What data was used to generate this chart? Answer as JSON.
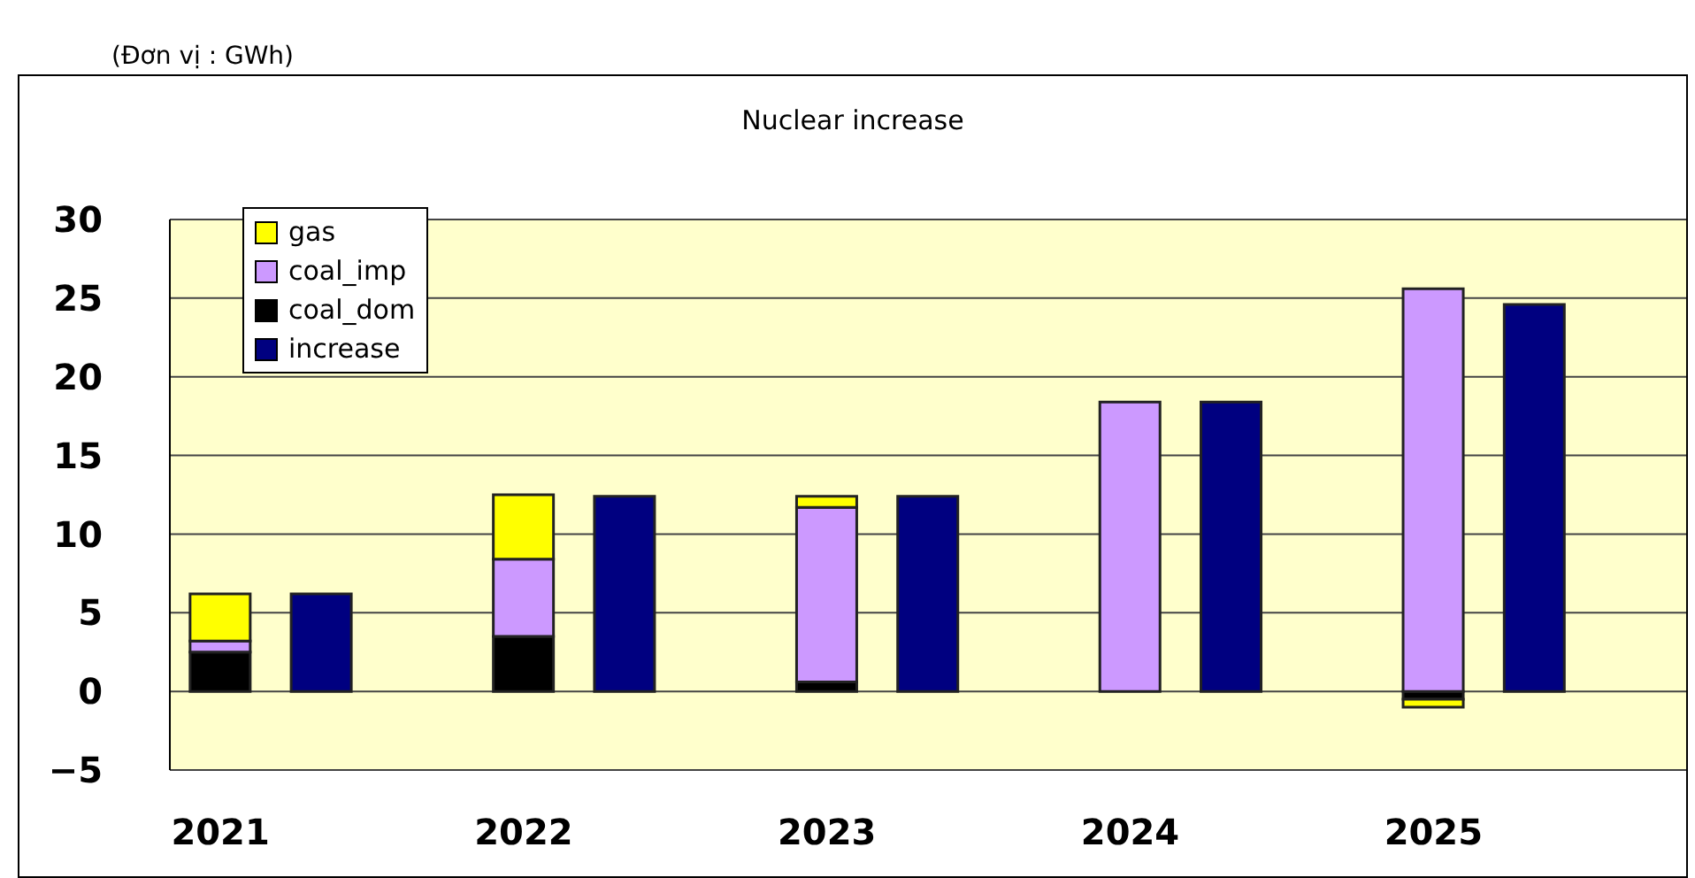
{
  "chart_data": {
    "type": "bar",
    "title": "Nuclear increase",
    "annotations": [
      "(Đơn vị : GWh)"
    ],
    "categories": [
      "2021",
      null,
      null,
      "2022",
      null,
      null,
      "2023",
      null,
      null,
      "2024",
      null,
      null,
      "2025",
      null,
      null
    ],
    "stacked": true,
    "series": [
      {
        "name": "increase",
        "color": "#000080",
        "values": [
          null,
          6.2,
          null,
          null,
          12.4,
          null,
          null,
          12.4,
          null,
          null,
          18.4,
          null,
          null,
          24.6,
          null
        ]
      },
      {
        "name": "coal_dom",
        "color": "#000000",
        "values": [
          2.5,
          null,
          null,
          3.5,
          null,
          null,
          0.6,
          null,
          null,
          null,
          null,
          null,
          -0.5,
          null,
          null
        ]
      },
      {
        "name": "coal_imp",
        "color": "#cc99ff",
        "values": [
          0.7,
          null,
          null,
          4.9,
          null,
          null,
          11.1,
          null,
          null,
          18.4,
          null,
          null,
          25.6,
          null,
          null
        ]
      },
      {
        "name": "gas",
        "color": "#ffff00",
        "values": [
          3.0,
          null,
          null,
          4.1,
          null,
          null,
          0.7,
          null,
          null,
          null,
          null,
          null,
          -0.5,
          null,
          null
        ]
      }
    ],
    "ylim": [
      -5,
      30
    ],
    "yticks": [
      -5,
      0,
      5,
      10,
      15,
      20,
      25,
      30
    ],
    "grid": "y",
    "legend": "top left"
  }
}
